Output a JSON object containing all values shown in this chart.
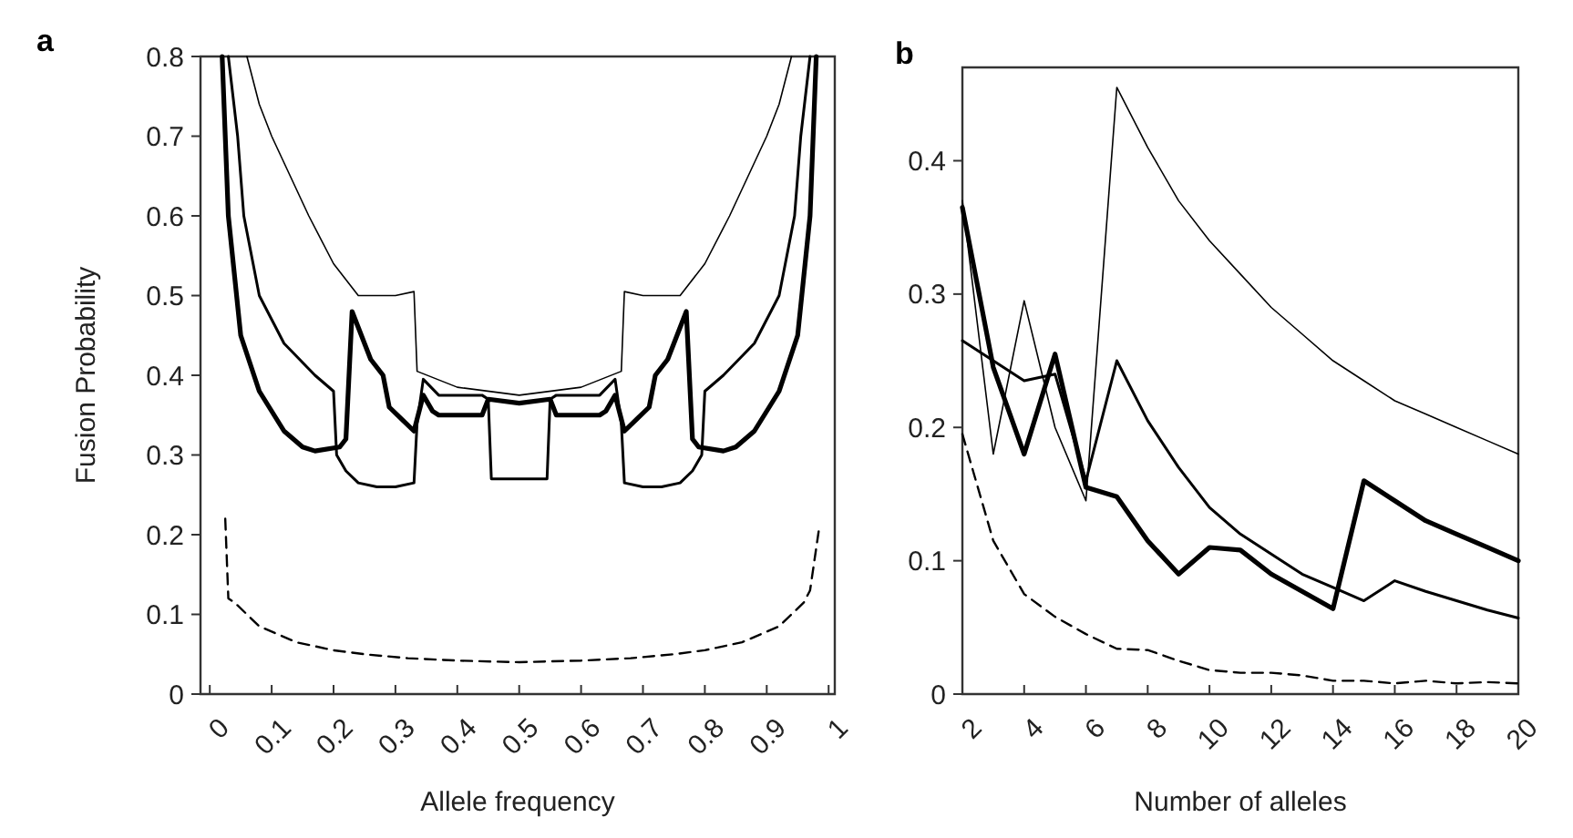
{
  "chart_data": [
    {
      "type": "line",
      "title": "a",
      "xlabel": "Allele frequency",
      "ylabel": "Fusion Probability",
      "xlim": [
        -0.015,
        1.01
      ],
      "ylim": [
        0,
        0.8
      ],
      "xticks": [
        0,
        0.1,
        0.2,
        0.3,
        0.4,
        0.5,
        0.6,
        0.7,
        0.8,
        0.9,
        1
      ],
      "yticks": [
        0,
        0.1,
        0.2,
        0.3,
        0.4,
        0.5,
        0.6,
        0.7,
        0.8
      ],
      "series": [
        {
          "color": "#000000",
          "line_style": "solid",
          "x": [
            0.06,
            0.08,
            0.1,
            0.13,
            0.16,
            0.2,
            0.24,
            0.3,
            0.33,
            0.335,
            0.4,
            0.5,
            0.6,
            0.665,
            0.67,
            0.7,
            0.76,
            0.8,
            0.84,
            0.87,
            0.9,
            0.92,
            0.94
          ],
          "values": [
            0.8,
            0.74,
            0.7,
            0.65,
            0.6,
            0.54,
            0.5,
            0.5,
            0.505,
            0.405,
            0.385,
            0.375,
            0.385,
            0.405,
            0.505,
            0.5,
            0.5,
            0.54,
            0.6,
            0.65,
            0.7,
            0.74,
            0.8
          ]
        },
        {
          "color": "#000000",
          "line_style": "solid",
          "x": [
            0.03,
            0.045,
            0.055,
            0.08,
            0.12,
            0.17,
            0.2,
            0.205,
            0.22,
            0.24,
            0.27,
            0.3,
            0.33,
            0.335,
            0.345,
            0.37,
            0.44,
            0.45,
            0.455,
            0.545,
            0.55,
            0.56,
            0.63,
            0.655,
            0.665,
            0.67,
            0.7,
            0.73,
            0.76,
            0.78,
            0.795,
            0.8,
            0.83,
            0.88,
            0.92,
            0.945,
            0.955,
            0.97
          ],
          "values": [
            0.8,
            0.7,
            0.6,
            0.5,
            0.44,
            0.4,
            0.38,
            0.3,
            0.28,
            0.265,
            0.26,
            0.26,
            0.265,
            0.34,
            0.395,
            0.375,
            0.375,
            0.37,
            0.27,
            0.27,
            0.37,
            0.375,
            0.375,
            0.395,
            0.34,
            0.265,
            0.26,
            0.26,
            0.265,
            0.28,
            0.3,
            0.38,
            0.4,
            0.44,
            0.5,
            0.6,
            0.7,
            0.8
          ]
        },
        {
          "color": "#000000",
          "line_style": "solid",
          "x": [
            0.02,
            0.03,
            0.05,
            0.08,
            0.12,
            0.15,
            0.17,
            0.21,
            0.22,
            0.23,
            0.24,
            0.26,
            0.28,
            0.29,
            0.31,
            0.33,
            0.345,
            0.36,
            0.37,
            0.44,
            0.45,
            0.5,
            0.55,
            0.56,
            0.63,
            0.64,
            0.655,
            0.67,
            0.69,
            0.71,
            0.72,
            0.74,
            0.76,
            0.77,
            0.78,
            0.79,
            0.83,
            0.85,
            0.88,
            0.92,
            0.95,
            0.97,
            0.98
          ],
          "values": [
            0.8,
            0.6,
            0.45,
            0.38,
            0.33,
            0.31,
            0.305,
            0.31,
            0.32,
            0.48,
            0.46,
            0.42,
            0.4,
            0.36,
            0.345,
            0.33,
            0.375,
            0.355,
            0.35,
            0.35,
            0.37,
            0.365,
            0.37,
            0.35,
            0.35,
            0.355,
            0.375,
            0.33,
            0.345,
            0.36,
            0.4,
            0.42,
            0.46,
            0.48,
            0.32,
            0.31,
            0.305,
            0.31,
            0.33,
            0.38,
            0.45,
            0.6,
            0.8
          ]
        },
        {
          "color": "#000000",
          "line_style": "dashed",
          "x": [
            0.025,
            0.03,
            0.04,
            0.08,
            0.14,
            0.2,
            0.25,
            0.32,
            0.4,
            0.5,
            0.6,
            0.68,
            0.75,
            0.8,
            0.86,
            0.92,
            0.96,
            0.97,
            0.985
          ],
          "values": [
            0.22,
            0.12,
            0.115,
            0.085,
            0.065,
            0.055,
            0.05,
            0.045,
            0.042,
            0.04,
            0.042,
            0.045,
            0.05,
            0.055,
            0.065,
            0.085,
            0.115,
            0.13,
            0.21
          ]
        }
      ]
    },
    {
      "type": "line",
      "title": "b",
      "xlabel": "Number of alleles",
      "xlim": [
        2,
        20
      ],
      "ylim": [
        0,
        0.47
      ],
      "xticks": [
        2,
        4,
        6,
        8,
        10,
        12,
        14,
        16,
        18,
        20
      ],
      "yticks": [
        0,
        0.1,
        0.2,
        0.3,
        0.4
      ],
      "x": [
        2,
        3,
        4,
        5,
        6,
        7,
        8,
        9,
        10,
        11,
        12,
        13,
        14,
        15,
        16,
        17,
        18,
        19,
        20
      ],
      "series": [
        {
          "color": "#000000",
          "line_style": "solid",
          "values": [
            0.37,
            0.18,
            0.295,
            0.2,
            0.145,
            0.455,
            0.41,
            0.37,
            0.34,
            0.315,
            0.29,
            0.27,
            0.25,
            0.235,
            0.22,
            0.21,
            0.2,
            0.19,
            0.18
          ]
        },
        {
          "color": "#000000",
          "line_style": "solid",
          "values": [
            0.265,
            0.25,
            0.235,
            0.24,
            0.16,
            0.25,
            0.205,
            0.17,
            0.14,
            0.12,
            0.105,
            0.09,
            0.08,
            0.07,
            0.085,
            0.077,
            0.07,
            0.063,
            0.057
          ]
        },
        {
          "color": "#000000",
          "line_style": "solid",
          "values": [
            0.365,
            0.245,
            0.18,
            0.255,
            0.155,
            0.148,
            0.115,
            0.09,
            0.11,
            0.108,
            0.09,
            0.077,
            0.064,
            0.16,
            0.145,
            0.13,
            0.12,
            0.11,
            0.1
          ]
        },
        {
          "color": "#000000",
          "line_style": "dashed",
          "values": [
            0.195,
            0.115,
            0.075,
            0.058,
            0.045,
            0.034,
            0.033,
            0.025,
            0.018,
            0.016,
            0.016,
            0.014,
            0.01,
            0.01,
            0.008,
            0.01,
            0.008,
            0.009,
            0.008
          ]
        }
      ]
    }
  ]
}
